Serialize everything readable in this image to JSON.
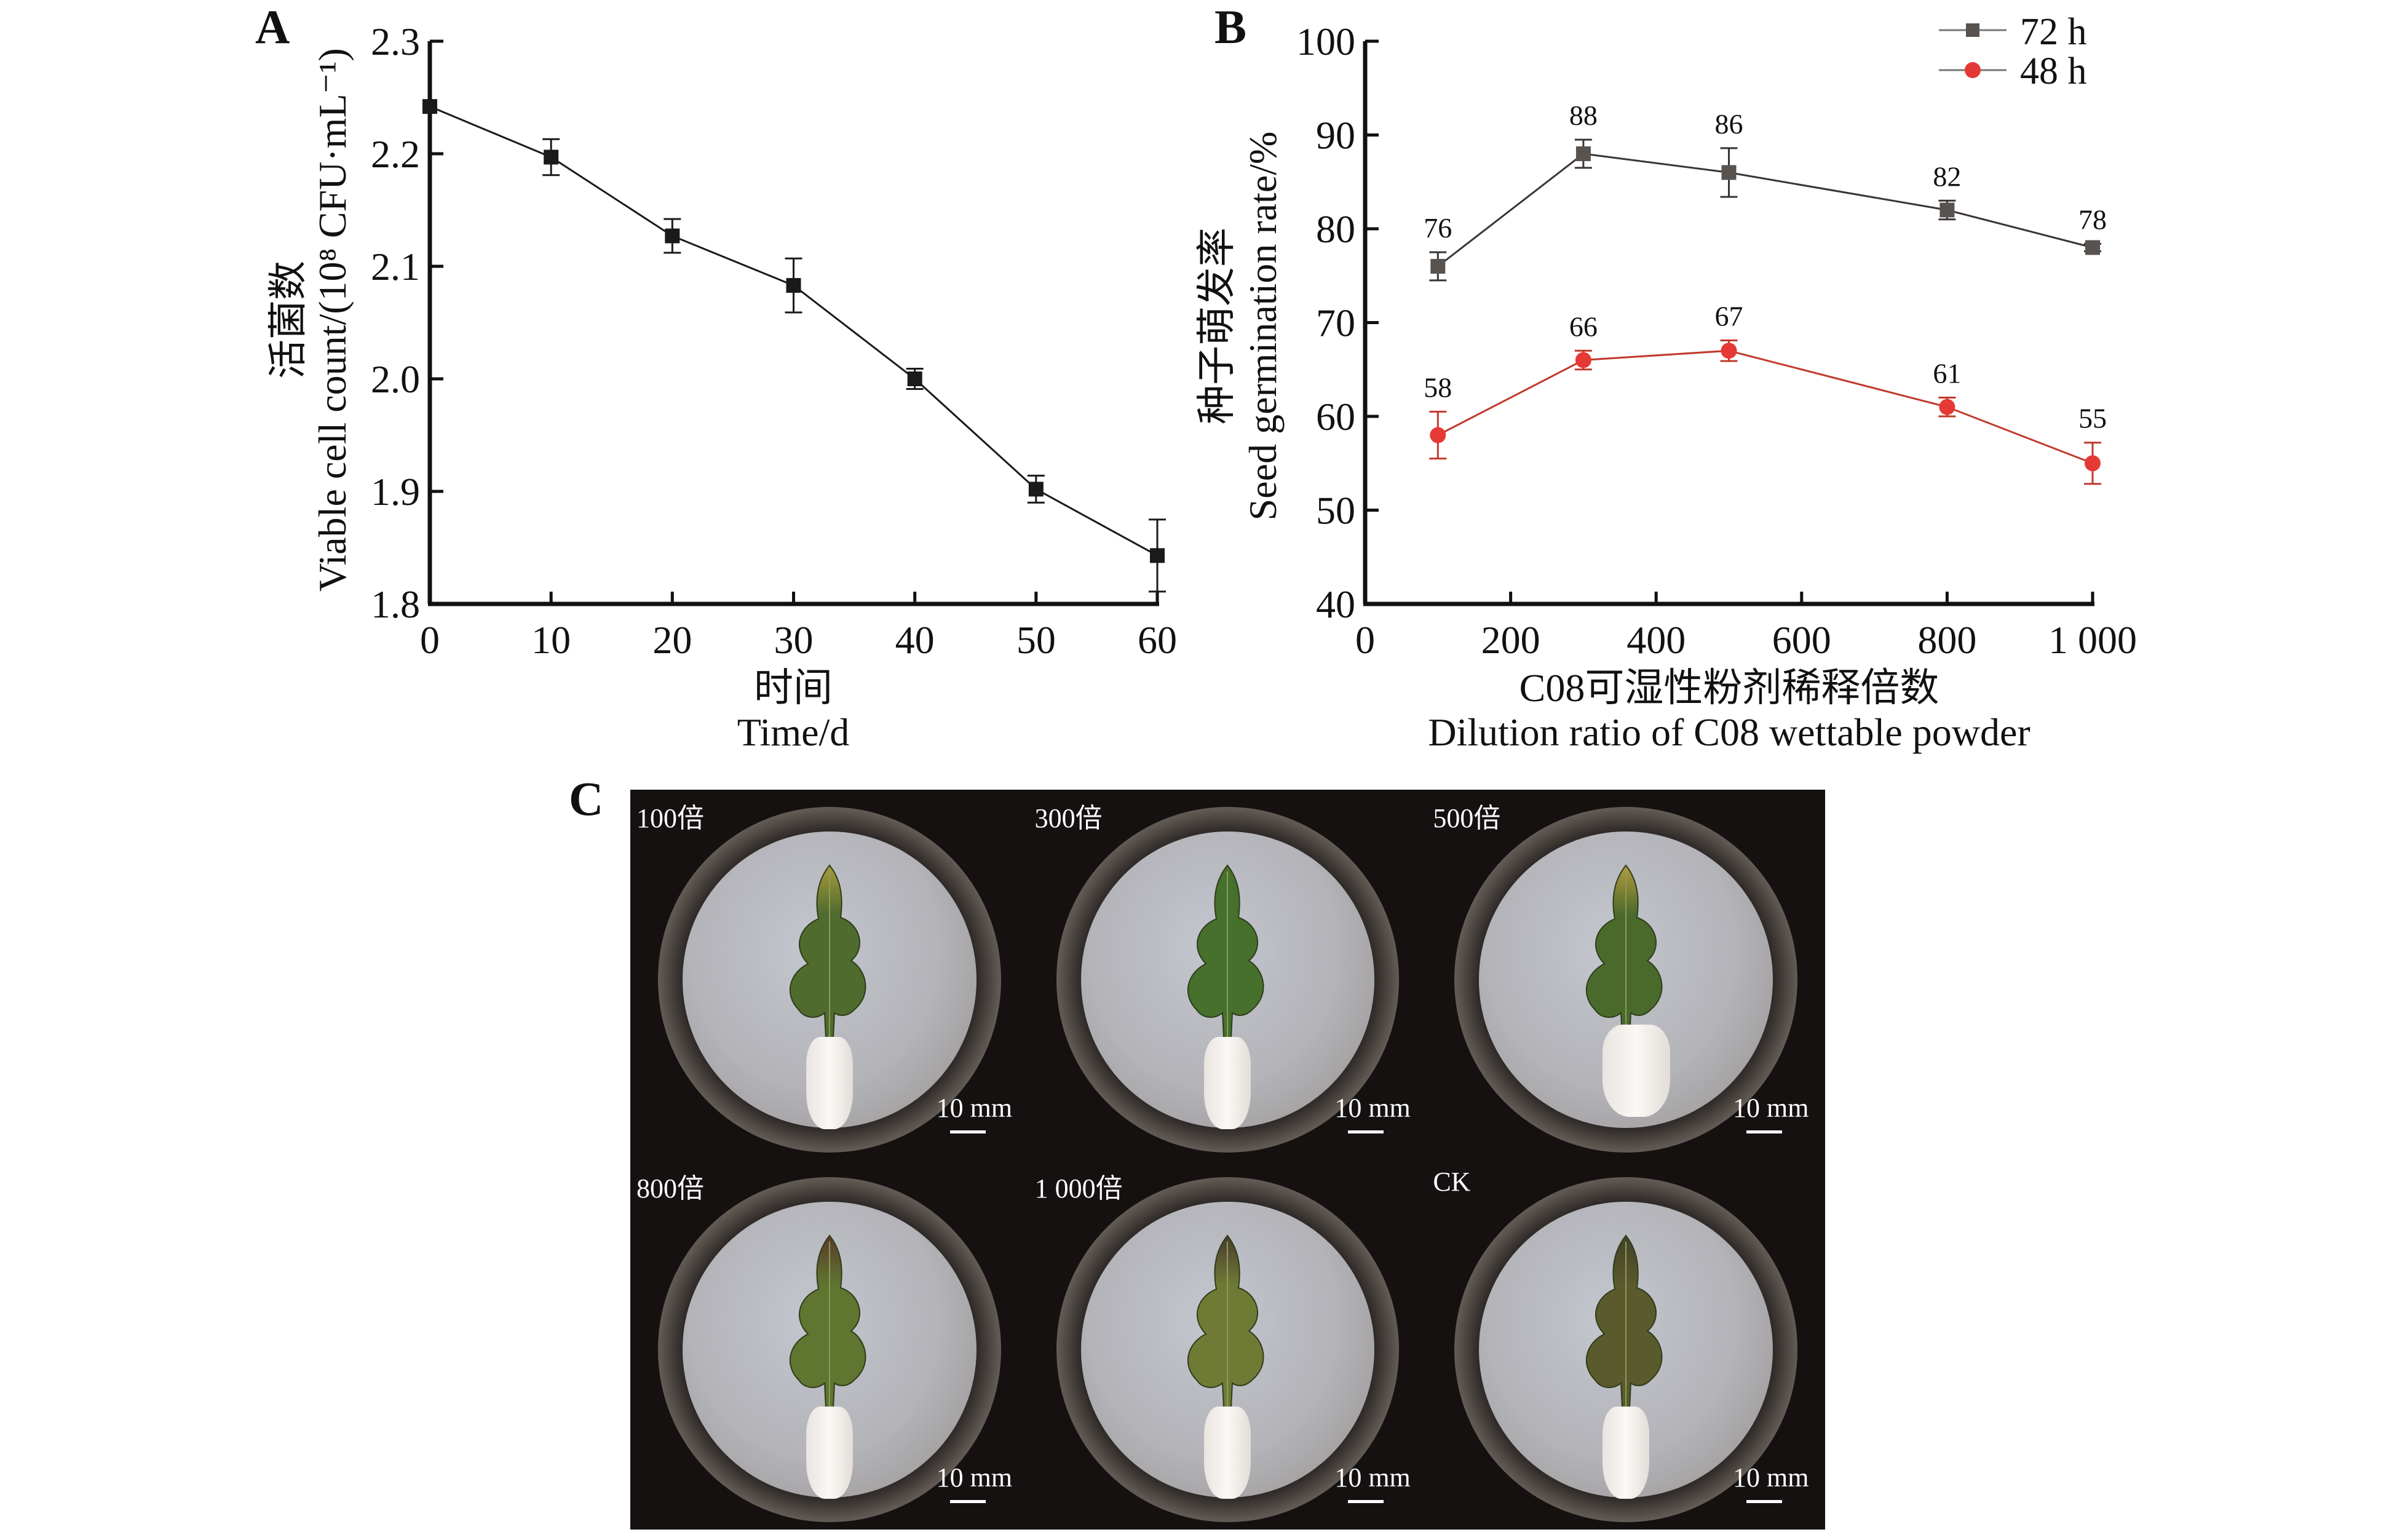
{
  "panels": {
    "a_label": "A",
    "b_label": "B",
    "c_label": "C"
  },
  "chart_data": [
    {
      "id": "A",
      "type": "line",
      "title": "",
      "xlabel_cn": "时间",
      "xlabel": "Time/d",
      "ylabel_cn": "活菌数",
      "ylabel": "Viable cell count/(10⁸ CFU·mL⁻¹)",
      "xlim": [
        0,
        60
      ],
      "ylim": [
        1.8,
        2.3
      ],
      "xticks": [
        0,
        10,
        20,
        30,
        40,
        50,
        60
      ],
      "yticks": [
        1.8,
        1.9,
        2.0,
        2.1,
        2.2,
        2.3
      ],
      "ytick_labels": [
        "1.8",
        "1.9",
        "2.0",
        "2.1",
        "2.2",
        "2.3"
      ],
      "grid": false,
      "series": [
        {
          "name": "Viable cell count",
          "color": "#1a1a1a",
          "marker": "square",
          "x": [
            0,
            10,
            20,
            30,
            40,
            50,
            60
          ],
          "values": [
            2.242,
            2.197,
            2.127,
            2.083,
            2.0,
            1.902,
            1.843
          ],
          "error": [
            0,
            0.016,
            0.015,
            0.024,
            0.009,
            0.012,
            0.032
          ]
        }
      ]
    },
    {
      "id": "B",
      "type": "line",
      "title": "",
      "xlabel_cn": "C08可湿性粉剂稀释倍数",
      "xlabel": "Dilution ratio of C08 wettable powder",
      "ylabel_cn": "种子萌发率",
      "ylabel": "Seed germination rate/%",
      "xlim": [
        0,
        1000
      ],
      "ylim": [
        40,
        100
      ],
      "xticks": [
        0,
        200,
        400,
        600,
        800,
        1000
      ],
      "xtick_labels": [
        "0",
        "200",
        "400",
        "600",
        "800",
        "1 000"
      ],
      "yticks": [
        40,
        50,
        60,
        70,
        80,
        90,
        100
      ],
      "grid": false,
      "legend_position": "top-right",
      "series": [
        {
          "name": "72 h",
          "color": "#595350",
          "line_color": "#3a3533",
          "marker": "square",
          "x": [
            100,
            300,
            500,
            800,
            1000
          ],
          "values": [
            76,
            88,
            86,
            82,
            78
          ],
          "error": [
            1.5,
            1.5,
            2.6,
            1.0,
            0.4
          ],
          "data_labels": [
            "76",
            "88",
            "86",
            "82",
            "78"
          ]
        },
        {
          "name": "48 h",
          "color": "#e53935",
          "line_color": "#c0392b",
          "marker": "circle",
          "x": [
            100,
            300,
            500,
            800,
            1000
          ],
          "values": [
            58,
            66,
            67,
            61,
            55
          ],
          "error": [
            2.5,
            1.0,
            1.1,
            1.0,
            2.2
          ],
          "data_labels": [
            "58",
            "66",
            "67",
            "61",
            "55"
          ]
        }
      ]
    }
  ],
  "photos": {
    "scale_text": "10 mm",
    "items": [
      {
        "label": "100倍",
        "leaf_state": "green",
        "leaf_color": "#4f6b2e",
        "tip_color": "#a89a3a"
      },
      {
        "label": "300倍",
        "leaf_state": "green",
        "leaf_color": "#46702c",
        "tip_color": "#46702c"
      },
      {
        "label": "500倍",
        "leaf_state": "green-yellow-tip",
        "leaf_color": "#4a6a2c",
        "tip_color": "#b59a3c"
      },
      {
        "label": "800倍",
        "leaf_state": "yellowing",
        "leaf_color": "#5f7530",
        "tip_color": "#5b3a2a"
      },
      {
        "label": "1 000倍",
        "leaf_state": "browning",
        "leaf_color": "#6f7a35",
        "tip_color": "#4a3a2e"
      },
      {
        "label": "CK",
        "leaf_state": "wilted-brown",
        "leaf_color": "#5a5a2c",
        "tip_color": "#43402a"
      }
    ]
  }
}
